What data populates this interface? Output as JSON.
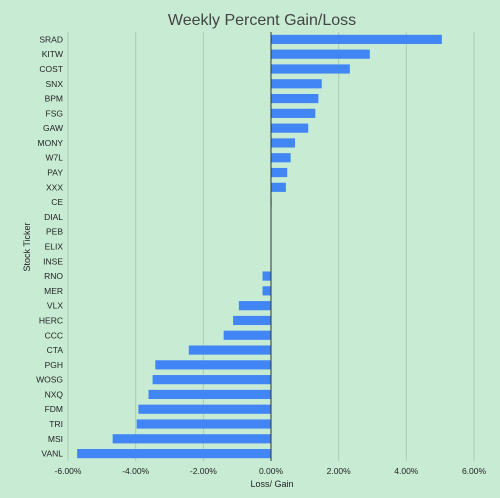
{
  "chart_data": {
    "type": "bar",
    "orientation": "horizontal",
    "title": "Weekly Percent Gain/Loss",
    "xlabel": "Loss/ Gain",
    "ylabel": "Stock Ticker",
    "xlim": [
      -0.06,
      0.06
    ],
    "x_ticks": [
      -0.06,
      -0.04,
      -0.02,
      0,
      0.02,
      0.04,
      0.06
    ],
    "x_tick_labels": [
      "-6.00%",
      "-4.00%",
      "-2.00%",
      "0.00%",
      "2.00%",
      "4.00%",
      "6.00%"
    ],
    "grid": true,
    "legend": "none",
    "bar_color": "#4285f4",
    "background_color": "#c8ecd3",
    "categories": [
      "SRAD",
      "KITW",
      "COST",
      "SNX",
      "BPM",
      "FSG",
      "GAW",
      "MONY",
      "W7L",
      "PAY",
      "XXX",
      "CE",
      "DIAL",
      "PEB",
      "ELIX",
      "INSE",
      "RNO",
      "MER",
      "VLX",
      "HERC",
      "CCC",
      "CTA",
      "PGH",
      "WOSG",
      "NXQ",
      "FDM",
      "TRI",
      "MSI",
      "VANL"
    ],
    "values": [
      0.0505,
      0.0292,
      0.0233,
      0.015,
      0.014,
      0.0131,
      0.011,
      0.0071,
      0.0058,
      0.0048,
      0.0044,
      0.0002,
      0.0001,
      0.0001,
      0.0,
      0.0,
      -0.0025,
      -0.0025,
      -0.0095,
      -0.0112,
      -0.014,
      -0.0243,
      -0.0342,
      -0.035,
      -0.0362,
      -0.0392,
      -0.0397,
      -0.0468,
      -0.0573
    ]
  }
}
